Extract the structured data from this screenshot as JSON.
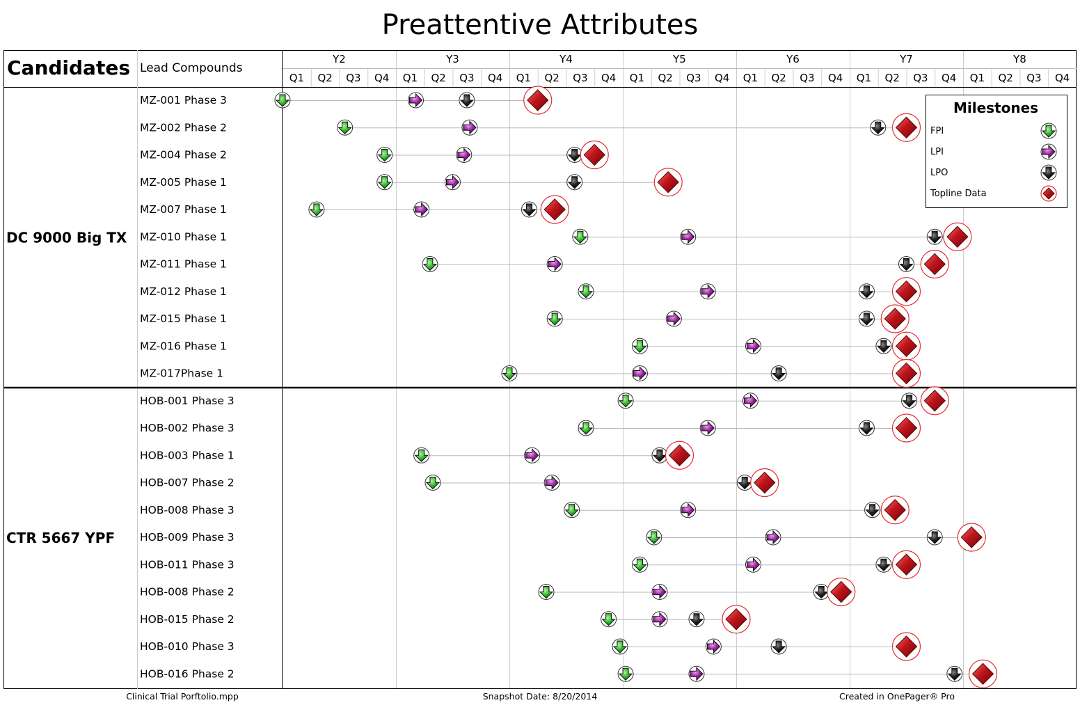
{
  "page_title": "Preattentive Attributes",
  "header": {
    "candidates": "Candidates",
    "lead_compounds": "Lead Compounds"
  },
  "footer": {
    "left": "Clinical Trial Porftolio.mpp",
    "center": "Snapshot Date: 8/20/2014",
    "right": "Created in OnePager® Pro"
  },
  "legend": {
    "title": "Milestones",
    "items": [
      {
        "key": "fpi",
        "label": "FPI"
      },
      {
        "key": "lpi",
        "label": "LPI"
      },
      {
        "key": "lpo",
        "label": "LPO"
      },
      {
        "key": "topline",
        "label": "Topline Data"
      }
    ]
  },
  "colors": {
    "fpi": "#1a9e1a",
    "lpi": "#8a1a8c",
    "lpo": "#111111",
    "topline": "#c0141a",
    "ring": "#e23030",
    "grid": "#cccccc"
  },
  "chart_data": {
    "type": "scatter",
    "title": "Preattentive Attributes",
    "years": [
      "Y2",
      "Y3",
      "Y4",
      "Y5",
      "Y6",
      "Y7",
      "Y8"
    ],
    "quarters": [
      "Q1",
      "Q2",
      "Q3",
      "Q4"
    ],
    "xlim": [
      0,
      28
    ],
    "milestone_series": [
      "FPI",
      "LPI",
      "LPO",
      "Topline Data"
    ],
    "groups": [
      {
        "name": "DC 9000 Big TX",
        "rows": [
          {
            "label": "MZ-001 Phase 3",
            "fpi": 0.0,
            "lpi": 4.7,
            "lpo": 6.5,
            "topline": 9.0
          },
          {
            "label": "MZ-002 Phase 2",
            "fpi": 2.2,
            "lpi": 6.6,
            "lpo": 21.0,
            "topline": 22.0
          },
          {
            "label": "MZ-004 Phase 2",
            "fpi": 3.6,
            "lpi": 6.4,
            "lpo": 10.3,
            "topline": 11.0
          },
          {
            "label": "MZ-005 Phase 1",
            "fpi": 3.6,
            "lpi": 6.0,
            "lpo": 10.3,
            "topline": 13.6
          },
          {
            "label": "MZ-007 Phase 1",
            "fpi": 1.2,
            "lpi": 4.9,
            "lpo": 8.7,
            "topline": 9.6
          },
          {
            "label": "MZ-010 Phase 1",
            "fpi": 10.5,
            "lpi": 14.3,
            "lpo": 23.0,
            "topline": 23.8
          },
          {
            "label": "MZ-011 Phase 1",
            "fpi": 5.2,
            "lpi": 9.6,
            "lpo": 22.0,
            "topline": 23.0
          },
          {
            "label": "MZ-012 Phase 1",
            "fpi": 10.7,
            "lpi": 15.0,
            "lpo": 20.6,
            "topline": 22.0
          },
          {
            "label": "MZ-015 Phase 1",
            "fpi": 9.6,
            "lpi": 13.8,
            "lpo": 20.6,
            "topline": 21.6
          },
          {
            "label": "MZ-016 Phase 1",
            "fpi": 12.6,
            "lpi": 16.6,
            "lpo": 21.2,
            "topline": 22.0
          },
          {
            "label": "MZ-017Phase 1",
            "fpi": 8.0,
            "lpi": 12.6,
            "lpo": 17.5,
            "topline": 22.0
          }
        ]
      },
      {
        "name": "CTR 5667 YPF",
        "rows": [
          {
            "label": "HOB-001 Phase 3",
            "fpi": 12.1,
            "lpi": 16.5,
            "lpo": 22.1,
            "topline": 23.0
          },
          {
            "label": "HOB-002 Phase 3",
            "fpi": 10.7,
            "lpi": 15.0,
            "lpo": 20.6,
            "topline": 22.0
          },
          {
            "label": "HOB-003 Phase 1",
            "fpi": 4.9,
            "lpi": 8.8,
            "lpo": 13.3,
            "topline": 14.0
          },
          {
            "label": "HOB-007 Phase 2",
            "fpi": 5.3,
            "lpi": 9.5,
            "lpo": 16.3,
            "topline": 17.0
          },
          {
            "label": "HOB-008 Phase 3",
            "fpi": 10.2,
            "lpi": 14.3,
            "lpo": 20.8,
            "topline": 21.6
          },
          {
            "label": "HOB-009 Phase 3",
            "fpi": 13.1,
            "lpi": 17.3,
            "lpo": 23.0,
            "topline": 24.3
          },
          {
            "label": "HOB-011 Phase 3",
            "fpi": 12.6,
            "lpi": 16.6,
            "lpo": 21.2,
            "topline": 22.0
          },
          {
            "label": "HOB-008 Phase 2",
            "fpi": 9.3,
            "lpi": 13.3,
            "lpo": 19.0,
            "topline": 19.7
          },
          {
            "label": "HOB-015 Phase 2",
            "fpi": 11.5,
            "lpi": 13.3,
            "lpo": 14.6,
            "topline": 16.0
          },
          {
            "label": "HOB-010 Phase 3",
            "fpi": 11.9,
            "lpi": 15.2,
            "lpo": 17.5,
            "topline": 22.0
          },
          {
            "label": "HOB-016 Phase 2",
            "fpi": 12.1,
            "lpi": 14.6,
            "lpo": 23.7,
            "topline": 24.7
          }
        ]
      }
    ]
  }
}
